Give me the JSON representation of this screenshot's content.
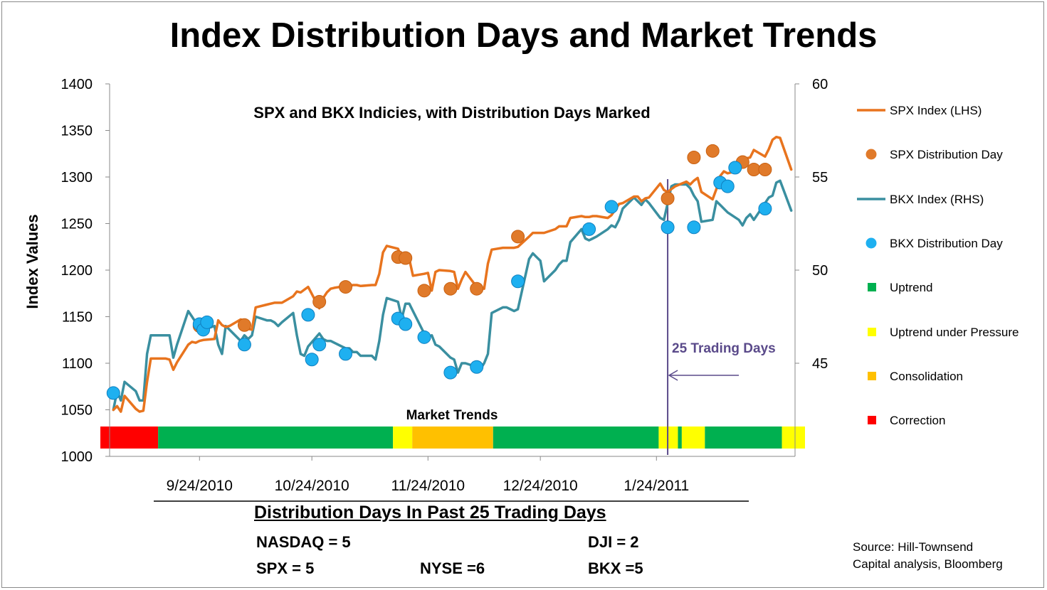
{
  "title": "Index Distribution Days and Market Trends",
  "subtitle": "SPX and BKX Indicies, with Distribution Days Marked",
  "ylabel": "Index Values",
  "colors": {
    "spx": "#E8741E",
    "spx_dot": "#E07A2A",
    "bkx": "#3A8FA0",
    "bkx_dot": "#1EB0F0",
    "uptrend": "#00B050",
    "pressure": "#FFFF00",
    "consolidation": "#FFC000",
    "correction": "#FF0000",
    "annotation": "#5A4A8A"
  },
  "legend": [
    {
      "label": "SPX Index (LHS)",
      "symbol": "line",
      "color": "#E8741E"
    },
    {
      "label": "SPX Distribution Day",
      "symbol": "dot",
      "color": "#E07A2A"
    },
    {
      "label": "BKX Index (RHS)",
      "symbol": "line",
      "color": "#3A8FA0"
    },
    {
      "label": "BKX Distribution Day",
      "symbol": "dot",
      "color": "#1EB0F0"
    },
    {
      "label": "Uptrend",
      "symbol": "square",
      "color": "#00B050"
    },
    {
      "label": "Uptrend under Pressure",
      "symbol": "square",
      "color": "#FFFF00"
    },
    {
      "label": "Consolidation",
      "symbol": "square",
      "color": "#FFC000"
    },
    {
      "label": "Correction",
      "symbol": "square",
      "color": "#FF0000"
    }
  ],
  "distribution": {
    "title": "Distribution Days In Past 25 Trading Days",
    "nasdaq": "NASDAQ =  5",
    "dji": "DJI = 2",
    "spx": "SPX = 5",
    "nyse": "NYSE =6",
    "bkx": "BKX =5"
  },
  "source": {
    "line1": "Source: Hill-Townsend",
    "line2": "Capital analysis, Bloomberg"
  },
  "annotation": {
    "label": "25 Trading Days",
    "arrow_from_day": 167,
    "arrow_to_day": 148
  },
  "chart_data": {
    "type": "line",
    "x_unit": "day offset from 9/1/2010",
    "x_start": "9/1/2010",
    "xlim": [
      -1,
      182
    ],
    "ylim_left": [
      1000,
      1400
    ],
    "ylim_right": [
      40,
      60
    ],
    "left_ticks": [
      1000,
      1050,
      1100,
      1150,
      1200,
      1250,
      1300,
      1350,
      1400
    ],
    "right_ticks": [
      45,
      50,
      55,
      60
    ],
    "x_ticks": [
      {
        "label": "9/24/2010",
        "day": 23
      },
      {
        "label": "10/24/2010",
        "day": 53
      },
      {
        "label": "11/24/2010",
        "day": 84
      },
      {
        "label": "12/24/2010",
        "day": 114
      },
      {
        "label": "1/24/2011",
        "day": 145
      }
    ],
    "series": [
      {
        "name": "SPX Index (LHS)",
        "axis": "left",
        "x": [
          0,
          1,
          2,
          3,
          6,
          7,
          8,
          9,
          10,
          13,
          14,
          15,
          16,
          17,
          20,
          21,
          22,
          23,
          24,
          27,
          28,
          29,
          30,
          31,
          34,
          35,
          36,
          37,
          38,
          41,
          42,
          43,
          44,
          45,
          48,
          49,
          50,
          51,
          52,
          55,
          56,
          57,
          58,
          59,
          62,
          63,
          64,
          65,
          66,
          69,
          70,
          71,
          72,
          73,
          76,
          77,
          78,
          79,
          80,
          83,
          84,
          85,
          86,
          87,
          90,
          91,
          92,
          93,
          94,
          97,
          98,
          99,
          100,
          101,
          104,
          105,
          106,
          107,
          108,
          111,
          112,
          113,
          114,
          115,
          118,
          119,
          120,
          121,
          122,
          125,
          126,
          127,
          128,
          129,
          132,
          133,
          134,
          135,
          136,
          139,
          140,
          141,
          142,
          143,
          146,
          147,
          148,
          149,
          150,
          153,
          154,
          155,
          156,
          157,
          160,
          161,
          162,
          163,
          164,
          167,
          168,
          169,
          170,
          171,
          174,
          175,
          176,
          177,
          178,
          181
        ],
        "values": [
          1050,
          1054,
          1048,
          1065,
          1051,
          1048,
          1049,
          1080,
          1105,
          1105,
          1105,
          1104,
          1093,
          1101,
          1120,
          1123,
          1122,
          1124,
          1125,
          1126,
          1146,
          1141,
          1139,
          1140,
          1147,
          1146,
          1137,
          1136,
          1160,
          1163,
          1164,
          1165,
          1165,
          1165,
          1172,
          1177,
          1176,
          1179,
          1182,
          1159,
          1170,
          1176,
          1180,
          1181,
          1183,
          1183,
          1184,
          1184,
          1183,
          1184,
          1184,
          1196,
          1219,
          1226,
          1223,
          1213,
          1214,
          1212,
          1194,
          1196,
          1197,
          1178,
          1198,
          1200,
          1199,
          1198,
          1180,
          1190,
          1198,
          1182,
          1182,
          1180,
          1207,
          1222,
          1224,
          1224,
          1224,
          1224,
          1225,
          1236,
          1240,
          1240,
          1240,
          1240,
          1244,
          1247,
          1247,
          1247,
          1256,
          1258,
          1257,
          1257,
          1258,
          1258,
          1256,
          1259,
          1265,
          1271,
          1272,
          1279,
          1279,
          1274,
          1277,
          1278,
          1293,
          1286,
          1284,
          1287,
          1290,
          1295,
          1292,
          1296,
          1299,
          1284,
          1276,
          1287,
          1301,
          1306,
          1304,
          1307,
          1313,
          1320,
          1321,
          1329,
          1322,
          1330,
          1340,
          1343,
          1342,
          1308
        ]
      },
      {
        "name": "BKX Index (RHS)",
        "axis": "right",
        "x": [
          0,
          1,
          2,
          3,
          6,
          7,
          8,
          9,
          10,
          13,
          14,
          15,
          16,
          17,
          20,
          21,
          22,
          23,
          24,
          27,
          28,
          29,
          30,
          31,
          34,
          35,
          36,
          37,
          38,
          41,
          42,
          43,
          44,
          45,
          48,
          49,
          50,
          51,
          52,
          55,
          56,
          57,
          58,
          59,
          62,
          63,
          64,
          65,
          66,
          69,
          70,
          71,
          72,
          73,
          76,
          77,
          78,
          79,
          80,
          83,
          84,
          85,
          86,
          87,
          90,
          91,
          92,
          93,
          94,
          97,
          98,
          99,
          100,
          101,
          104,
          105,
          106,
          107,
          108,
          111,
          112,
          113,
          114,
          115,
          118,
          119,
          120,
          121,
          122,
          125,
          126,
          127,
          128,
          129,
          132,
          133,
          134,
          135,
          136,
          139,
          140,
          141,
          142,
          143,
          146,
          147,
          148,
          149,
          150,
          153,
          154,
          155,
          156,
          157,
          160,
          161,
          162,
          163,
          164,
          167,
          168,
          169,
          170,
          171,
          174,
          175,
          176,
          177,
          178,
          181
        ],
        "values": [
          42.5,
          43.5,
          43.0,
          44.0,
          43.5,
          43.0,
          43.0,
          45.5,
          46.5,
          46.5,
          46.5,
          46.5,
          45.3,
          46.0,
          47.8,
          47.5,
          47.2,
          47.0,
          46.8,
          47.0,
          46.0,
          45.5,
          47.0,
          46.8,
          46.2,
          46.5,
          46.3,
          46.5,
          47.5,
          47.3,
          47.3,
          47.2,
          47.0,
          47.2,
          47.7,
          46.5,
          45.5,
          45.4,
          45.9,
          46.6,
          46.3,
          46.2,
          46.2,
          46.1,
          45.8,
          45.8,
          45.6,
          45.6,
          45.4,
          45.4,
          45.2,
          46.2,
          47.6,
          48.5,
          48.3,
          47.4,
          48.2,
          48.2,
          47.8,
          46.6,
          46.4,
          46.5,
          46.0,
          45.9,
          45.3,
          45.2,
          44.5,
          45.0,
          45.0,
          44.8,
          44.7,
          45.0,
          45.5,
          47.7,
          48.0,
          48.0,
          47.9,
          47.8,
          47.9,
          50.6,
          50.9,
          50.7,
          50.5,
          49.4,
          50.0,
          50.3,
          50.5,
          50.5,
          51.5,
          52.2,
          51.7,
          51.6,
          51.7,
          51.8,
          52.2,
          52.4,
          52.3,
          52.7,
          53.3,
          53.9,
          53.7,
          53.5,
          53.8,
          53.6,
          52.8,
          52.7,
          53.6,
          54.5,
          54.6,
          54.6,
          54.4,
          54.0,
          53.7,
          52.6,
          52.7,
          53.7,
          53.5,
          53.3,
          53.1,
          52.7,
          52.4,
          52.8,
          53.0,
          52.7,
          53.6,
          53.9,
          54.0,
          54.7,
          54.8,
          53.2
        ]
      },
      {
        "name": "SPX Distribution Day",
        "axis": "left",
        "x": [
          23,
          35,
          55,
          62,
          76,
          78,
          83,
          90,
          97,
          108,
          148,
          155,
          160,
          168,
          171,
          174
        ],
        "values": [
          1140,
          1141,
          1166,
          1182,
          1214,
          1213,
          1178,
          1180,
          1180,
          1236,
          1277,
          1321,
          1328,
          1316,
          1308,
          1308
        ]
      },
      {
        "name": "BKX Distribution Day",
        "axis": "right",
        "x": [
          0,
          23,
          24,
          25,
          35,
          52,
          53,
          55,
          62,
          76,
          78,
          83,
          90,
          97,
          108,
          127,
          133,
          148,
          155,
          162,
          164,
          166,
          174
        ],
        "values": [
          43.4,
          47.1,
          46.8,
          47.2,
          46.0,
          47.6,
          45.2,
          46.0,
          45.5,
          47.4,
          47.1,
          46.4,
          44.5,
          44.8,
          49.4,
          52.2,
          53.4,
          52.3,
          52.3,
          54.7,
          54.5,
          55.5,
          53.3
        ]
      }
    ],
    "market_trends": {
      "label": "Market Trends",
      "segments": [
        {
          "trend": "Correction",
          "start": -1,
          "end": 14
        },
        {
          "trend": "Uptrend",
          "start": 14,
          "end": 75
        },
        {
          "trend": "Uptrend under Pressure",
          "start": 75,
          "end": 80
        },
        {
          "trend": "Consolidation",
          "start": 80,
          "end": 101
        },
        {
          "trend": "Uptrend",
          "start": 101,
          "end": 144
        },
        {
          "trend": "Uptrend under Pressure",
          "start": 144,
          "end": 149
        },
        {
          "trend": "Uptrend",
          "start": 149,
          "end": 150
        },
        {
          "trend": "Uptrend under Pressure",
          "start": 150,
          "end": 156
        },
        {
          "trend": "Uptrend",
          "start": 156,
          "end": 176
        },
        {
          "trend": "Uptrend under Pressure",
          "start": 176,
          "end": 182
        }
      ]
    },
    "marker_day": 148,
    "grid": false,
    "legend_position": "right"
  }
}
